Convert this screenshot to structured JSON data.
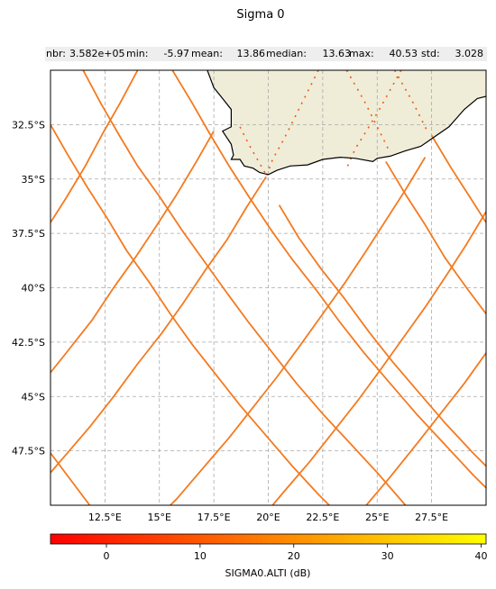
{
  "title": "Sigma 0",
  "stats": [
    {
      "label": "nbr:",
      "value": "3.582e+05"
    },
    {
      "label": "min:",
      "value": "-5.97"
    },
    {
      "label": "mean:",
      "value": "13.86"
    },
    {
      "label": "median:",
      "value": "13.63"
    },
    {
      "label": "max:",
      "value": "40.53"
    },
    {
      "label": "std:",
      "value": "3.028"
    }
  ],
  "colors": {
    "land": "#efedd8",
    "coast": "#000000",
    "track": "#f47a1f",
    "grid": "#a9a9a9"
  },
  "chart_data": {
    "type": "scatter",
    "projection": "PlateCarree",
    "xlim": [
      10,
      30
    ],
    "ylim": [
      -50,
      -30
    ],
    "x_ticks": [
      12.5,
      15,
      17.5,
      20,
      22.5,
      25,
      27.5
    ],
    "x_tick_labels": [
      "12.5°E",
      "15°E",
      "17.5°E",
      "20°E",
      "22.5°E",
      "25°E",
      "27.5°E"
    ],
    "y_ticks": [
      -32.5,
      -35,
      -37.5,
      -40,
      -42.5,
      -45,
      -47.5
    ],
    "y_tick_labels": [
      "32.5°S",
      "35°S",
      "37.5°S",
      "40°S",
      "42.5°S",
      "45°S",
      "47.5°S"
    ],
    "grid": true,
    "colorbar": {
      "label": "SIGMA0.ALTI (dB)",
      "min": -5.97,
      "max": 40.53,
      "ticks": [
        0,
        10,
        20,
        30,
        40
      ],
      "colormap": "autumn"
    },
    "coastline": [
      [
        17.2,
        -30.0
      ],
      [
        17.5,
        -30.8
      ],
      [
        17.9,
        -31.3
      ],
      [
        18.3,
        -31.8
      ],
      [
        18.3,
        -32.6
      ],
      [
        17.9,
        -32.8
      ],
      [
        18.1,
        -33.1
      ],
      [
        18.3,
        -33.4
      ],
      [
        18.4,
        -33.9
      ],
      [
        18.3,
        -34.1
      ],
      [
        18.7,
        -34.1
      ],
      [
        18.9,
        -34.4
      ],
      [
        19.3,
        -34.5
      ],
      [
        19.6,
        -34.7
      ],
      [
        20.0,
        -34.8
      ],
      [
        20.4,
        -34.6
      ],
      [
        21.0,
        -34.4
      ],
      [
        21.8,
        -34.35
      ],
      [
        22.5,
        -34.1
      ],
      [
        23.3,
        -34.0
      ],
      [
        24.0,
        -34.05
      ],
      [
        24.8,
        -34.2
      ],
      [
        25.0,
        -34.05
      ],
      [
        25.6,
        -33.95
      ],
      [
        26.3,
        -33.7
      ],
      [
        27.0,
        -33.5
      ],
      [
        27.5,
        -33.15
      ],
      [
        28.3,
        -32.6
      ],
      [
        29.0,
        -31.8
      ],
      [
        29.6,
        -31.3
      ],
      [
        30.0,
        -31.2
      ]
    ],
    "tracks": [
      [
        [
          10.0,
          -32.5
        ],
        [
          10.8,
          -33.9
        ],
        [
          11.7,
          -35.4
        ],
        [
          12.6,
          -36.8
        ],
        [
          13.5,
          -38.3
        ],
        [
          14.5,
          -39.7
        ],
        [
          15.5,
          -41.2
        ],
        [
          16.5,
          -42.6
        ],
        [
          17.6,
          -44.0
        ],
        [
          18.7,
          -45.4
        ],
        [
          19.9,
          -46.8
        ],
        [
          21.1,
          -48.2
        ],
        [
          22.3,
          -49.5
        ],
        [
          22.8,
          -50.0
        ]
      ],
      [
        [
          11.5,
          -30.0
        ],
        [
          12.3,
          -31.5
        ],
        [
          13.1,
          -32.9
        ],
        [
          14.0,
          -34.4
        ],
        [
          15.0,
          -35.8
        ],
        [
          16.0,
          -37.3
        ],
        [
          17.0,
          -38.7
        ],
        [
          18.0,
          -40.1
        ],
        [
          19.1,
          -41.6
        ],
        [
          20.2,
          -43.0
        ],
        [
          21.3,
          -44.4
        ],
        [
          22.5,
          -45.8
        ],
        [
          23.8,
          -47.2
        ],
        [
          25.0,
          -48.5
        ],
        [
          26.3,
          -50.0
        ]
      ],
      [
        [
          15.6,
          -30.0
        ],
        [
          16.5,
          -31.5
        ],
        [
          17.3,
          -32.9
        ],
        [
          18.2,
          -34.4
        ],
        [
          19.1,
          -35.8
        ],
        [
          20.1,
          -37.3
        ],
        [
          21.1,
          -38.7
        ],
        [
          22.2,
          -40.1
        ],
        [
          23.3,
          -41.6
        ],
        [
          24.4,
          -43.0
        ],
        [
          25.6,
          -44.4
        ],
        [
          26.8,
          -45.8
        ],
        [
          28.1,
          -47.2
        ],
        [
          29.4,
          -48.6
        ],
        [
          30.0,
          -49.2
        ]
      ],
      [
        [
          20.5,
          -36.2
        ],
        [
          21.4,
          -37.7
        ],
        [
          22.4,
          -39.1
        ],
        [
          23.5,
          -40.5
        ],
        [
          24.6,
          -42.0
        ],
        [
          25.7,
          -43.4
        ],
        [
          26.9,
          -44.8
        ],
        [
          28.1,
          -46.2
        ],
        [
          29.4,
          -47.6
        ],
        [
          30.0,
          -48.2
        ]
      ],
      [
        [
          25.4,
          -34.2
        ],
        [
          26.3,
          -35.7
        ],
        [
          27.2,
          -37.1
        ],
        [
          28.1,
          -38.6
        ],
        [
          29.1,
          -40.0
        ],
        [
          30.0,
          -41.2
        ]
      ],
      [
        [
          27.5,
          -33.0
        ],
        [
          28.4,
          -34.5
        ],
        [
          29.3,
          -35.9
        ],
        [
          30.0,
          -37.0
        ]
      ],
      [
        [
          30.0,
          -36.5
        ],
        [
          29.1,
          -38.0
        ],
        [
          28.2,
          -39.4
        ],
        [
          27.2,
          -40.9
        ],
        [
          26.2,
          -42.3
        ],
        [
          25.2,
          -43.7
        ],
        [
          24.1,
          -45.2
        ],
        [
          23.0,
          -46.6
        ],
        [
          21.9,
          -48.0
        ],
        [
          20.7,
          -49.4
        ],
        [
          20.2,
          -50.0
        ]
      ],
      [
        [
          30.0,
          -43.0
        ],
        [
          29.0,
          -44.4
        ],
        [
          27.9,
          -45.8
        ],
        [
          26.8,
          -47.2
        ],
        [
          25.6,
          -48.7
        ],
        [
          24.5,
          -50.0
        ]
      ],
      [
        [
          27.2,
          -34.0
        ],
        [
          26.3,
          -35.5
        ],
        [
          25.4,
          -36.9
        ],
        [
          24.5,
          -38.3
        ],
        [
          23.5,
          -39.8
        ],
        [
          22.5,
          -41.2
        ],
        [
          21.5,
          -42.6
        ],
        [
          20.4,
          -44.1
        ],
        [
          19.3,
          -45.5
        ],
        [
          18.2,
          -46.9
        ],
        [
          17.0,
          -48.3
        ],
        [
          15.8,
          -49.7
        ],
        [
          15.5,
          -50.0
        ]
      ],
      [
        [
          19.9,
          -34.9
        ],
        [
          19.0,
          -36.3
        ],
        [
          18.1,
          -37.8
        ],
        [
          17.1,
          -39.2
        ],
        [
          16.1,
          -40.7
        ],
        [
          15.1,
          -42.1
        ],
        [
          14.0,
          -43.5
        ],
        [
          12.9,
          -45.0
        ],
        [
          11.8,
          -46.4
        ],
        [
          10.6,
          -47.8
        ],
        [
          10.0,
          -48.5
        ]
      ],
      [
        [
          14.0,
          -30.0
        ],
        [
          13.2,
          -31.5
        ],
        [
          12.4,
          -32.9
        ],
        [
          11.6,
          -34.4
        ],
        [
          10.7,
          -35.9
        ],
        [
          10.0,
          -37.0
        ]
      ],
      [
        [
          17.5,
          -32.8
        ],
        [
          16.7,
          -34.2
        ],
        [
          15.8,
          -35.7
        ],
        [
          14.9,
          -37.1
        ],
        [
          13.9,
          -38.6
        ],
        [
          12.9,
          -40.0
        ],
        [
          11.9,
          -41.5
        ],
        [
          10.8,
          -42.9
        ],
        [
          10.0,
          -43.9
        ]
      ],
      [
        [
          10.0,
          -47.6
        ],
        [
          10.9,
          -48.8
        ],
        [
          11.8,
          -50.0
        ]
      ]
    ],
    "land_tracks": [
      [
        [
          23.6,
          -30.0
        ],
        [
          24.0,
          -30.7
        ],
        [
          24.4,
          -31.4
        ],
        [
          24.8,
          -32.2
        ],
        [
          25.2,
          -33.0
        ],
        [
          25.5,
          -33.6
        ]
      ],
      [
        [
          18.7,
          -32.6
        ],
        [
          19.1,
          -33.4
        ],
        [
          19.5,
          -34.1
        ],
        [
          19.9,
          -34.8
        ]
      ],
      [
        [
          22.3,
          -30.0
        ],
        [
          21.9,
          -30.8
        ],
        [
          21.5,
          -31.6
        ],
        [
          21.1,
          -32.4
        ],
        [
          20.7,
          -33.2
        ],
        [
          20.2,
          -34.1
        ],
        [
          19.9,
          -34.9
        ]
      ],
      [
        [
          26.1,
          -30.0
        ],
        [
          25.6,
          -30.9
        ],
        [
          25.1,
          -31.8
        ],
        [
          24.5,
          -32.8
        ],
        [
          24.0,
          -33.6
        ],
        [
          23.6,
          -34.5
        ]
      ],
      [
        [
          25.8,
          -30.0
        ],
        [
          26.2,
          -30.7
        ],
        [
          26.6,
          -31.4
        ],
        [
          27.0,
          -32.2
        ],
        [
          27.3,
          -32.8
        ]
      ]
    ]
  }
}
